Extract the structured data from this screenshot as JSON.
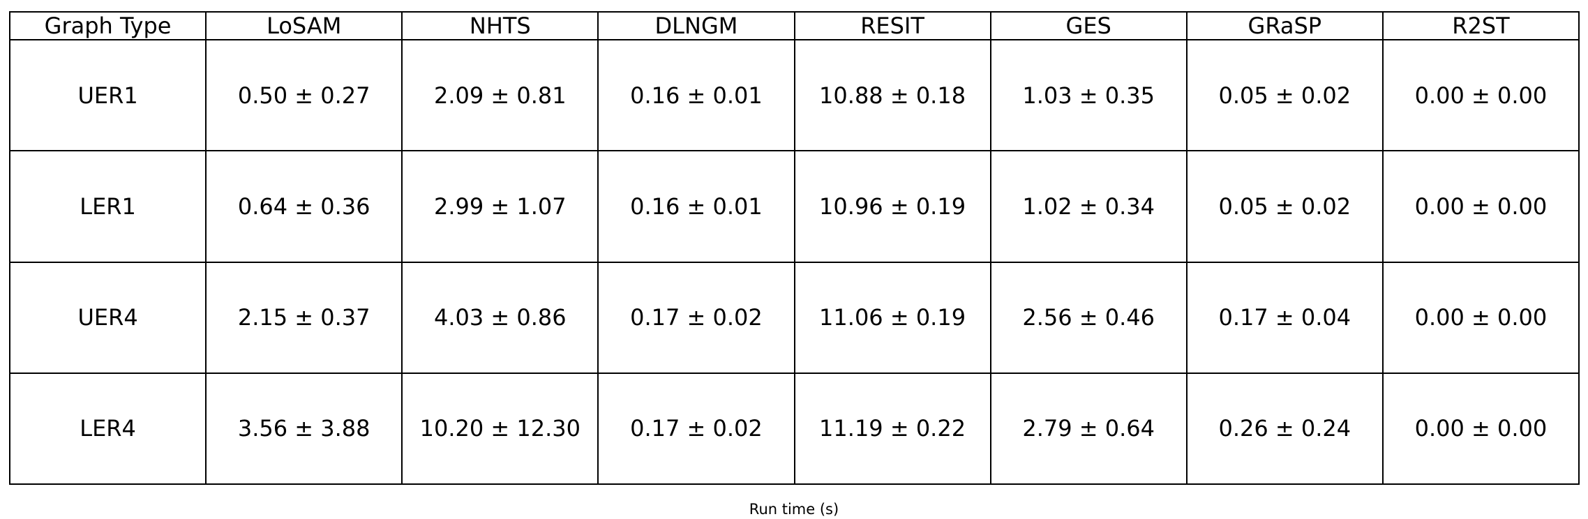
{
  "table": {
    "header": [
      "Graph Type",
      "LoSAM",
      "NHTS",
      "DLNGM",
      "RESIT",
      "GES",
      "GRaSP",
      "R2ST"
    ],
    "rows": [
      [
        "UER1",
        "0.50 ± 0.27",
        "2.09 ± 0.81",
        "0.16 ± 0.01",
        "10.88 ± 0.18",
        "1.03 ± 0.35",
        "0.05 ± 0.02",
        "0.00 ± 0.00"
      ],
      [
        "LER1",
        "0.64 ± 0.36",
        "2.99 ± 1.07",
        "0.16 ± 0.01",
        "10.96 ± 0.19",
        "1.02 ± 0.34",
        "0.05 ± 0.02",
        "0.00 ± 0.00"
      ],
      [
        "UER4",
        "2.15 ± 0.37",
        "4.03 ± 0.86",
        "0.17 ± 0.02",
        "11.06 ± 0.19",
        "2.56 ± 0.46",
        "0.17 ± 0.04",
        "0.00 ± 0.00"
      ],
      [
        "LER4",
        "3.56 ± 3.88",
        "10.20 ± 12.30",
        "0.17 ± 0.02",
        "11.19 ± 0.22",
        "2.79 ± 0.64",
        "0.26 ± 0.24",
        "0.00 ± 0.00"
      ]
    ],
    "caption": "Run time (s)"
  }
}
